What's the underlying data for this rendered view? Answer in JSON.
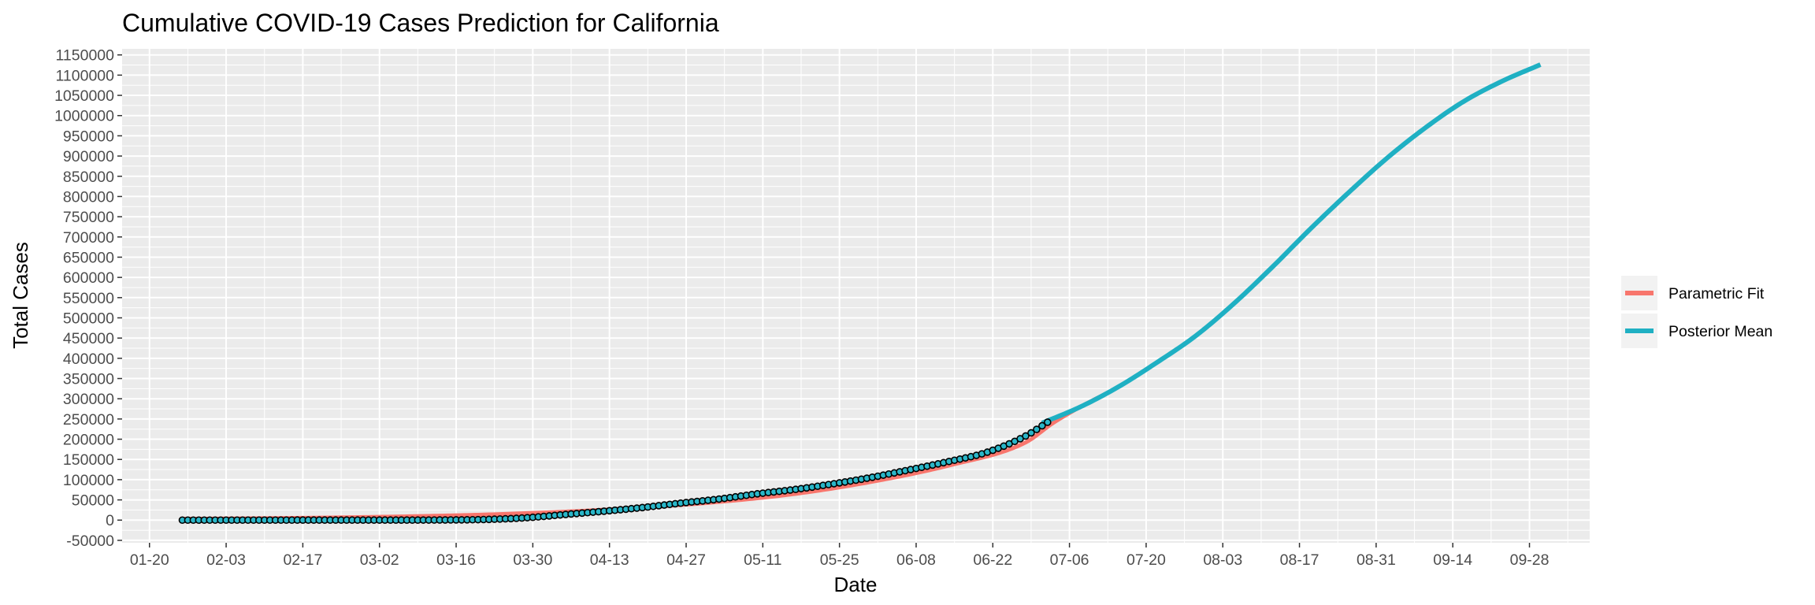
{
  "chart_data": {
    "type": "line",
    "title": "Cumulative COVID-19 Cases Prediction for California",
    "xlabel": "Date",
    "ylabel": "Total Cases",
    "x_tick_labels": [
      "01-20",
      "02-03",
      "02-17",
      "03-02",
      "03-16",
      "03-30",
      "04-13",
      "04-27",
      "05-11",
      "05-25",
      "06-08",
      "06-22",
      "07-06",
      "07-20",
      "08-03",
      "08-17",
      "08-31",
      "09-14",
      "09-28"
    ],
    "y_tick_labels": [
      "-50000",
      "0",
      "50000",
      "100000",
      "150000",
      "200000",
      "250000",
      "300000",
      "350000",
      "400000",
      "450000",
      "500000",
      "550000",
      "600000",
      "650000",
      "700000",
      "750000",
      "800000",
      "850000",
      "900000",
      "950000",
      "1000000",
      "1050000",
      "1100000",
      "1150000"
    ],
    "xlim": [
      "2020-01-15",
      "2020-10-09"
    ],
    "ylim": [
      -56000,
      1165000
    ],
    "grid": true,
    "legend_position": "right",
    "series": [
      {
        "name": "Parametric Fit",
        "color": "#F8766D",
        "points": [
          [
            "2020-01-26",
            3000
          ],
          [
            "2020-02-09",
            4500
          ],
          [
            "2020-02-23",
            6500
          ],
          [
            "2020-03-08",
            9500
          ],
          [
            "2020-03-22",
            14000
          ],
          [
            "2020-04-05",
            21000
          ],
          [
            "2020-04-19",
            31000
          ],
          [
            "2020-05-03",
            45000
          ],
          [
            "2020-05-17",
            65000
          ],
          [
            "2020-05-31",
            95000
          ],
          [
            "2020-06-14",
            135000
          ],
          [
            "2020-06-28",
            192000
          ],
          [
            "2020-07-03",
            240000
          ],
          [
            "2020-07-08",
            280000
          ],
          [
            "2020-07-15",
            330000
          ],
          [
            "2020-07-22",
            390000
          ],
          [
            "2020-07-29",
            455000
          ],
          [
            "2020-08-05",
            535000
          ],
          [
            "2020-08-12",
            625000
          ],
          [
            "2020-08-19",
            720000
          ],
          [
            "2020-08-26",
            810000
          ],
          [
            "2020-09-02",
            895000
          ],
          [
            "2020-09-09",
            970000
          ],
          [
            "2020-09-16",
            1035000
          ],
          [
            "2020-09-23",
            1085000
          ],
          [
            "2020-09-30",
            1126000
          ]
        ]
      },
      {
        "name": "Posterior Mean",
        "color": "#1FB0C3",
        "points": [
          [
            "2020-07-01",
            240000
          ],
          [
            "2020-07-08",
            280000
          ],
          [
            "2020-07-15",
            330000
          ],
          [
            "2020-07-22",
            390000
          ],
          [
            "2020-07-29",
            455000
          ],
          [
            "2020-08-05",
            535000
          ],
          [
            "2020-08-12",
            625000
          ],
          [
            "2020-08-19",
            720000
          ],
          [
            "2020-08-26",
            810000
          ],
          [
            "2020-09-02",
            895000
          ],
          [
            "2020-09-09",
            970000
          ],
          [
            "2020-09-16",
            1035000
          ],
          [
            "2020-09-23",
            1085000
          ],
          [
            "2020-09-30",
            1126000
          ]
        ]
      }
    ],
    "observed": {
      "start": "2020-01-26",
      "end": "2020-07-02",
      "fill": "#29B6C8",
      "stroke": "#000000",
      "value_points": [
        [
          "2020-01-26",
          0
        ],
        [
          "2020-03-01",
          50
        ],
        [
          "2020-03-15",
          450
        ],
        [
          "2020-03-22",
          1800
        ],
        [
          "2020-03-29",
          6000
        ],
        [
          "2020-04-05",
          14000
        ],
        [
          "2020-04-12",
          22000
        ],
        [
          "2020-04-19",
          31000
        ],
        [
          "2020-04-26",
          42000
        ],
        [
          "2020-05-03",
          52000
        ],
        [
          "2020-05-10",
          65000
        ],
        [
          "2020-05-17",
          76000
        ],
        [
          "2020-05-24",
          90000
        ],
        [
          "2020-05-31",
          106000
        ],
        [
          "2020-06-07",
          125000
        ],
        [
          "2020-06-14",
          145000
        ],
        [
          "2020-06-21",
          168000
        ],
        [
          "2020-06-28",
          208000
        ],
        [
          "2020-07-02",
          242000
        ]
      ]
    }
  }
}
